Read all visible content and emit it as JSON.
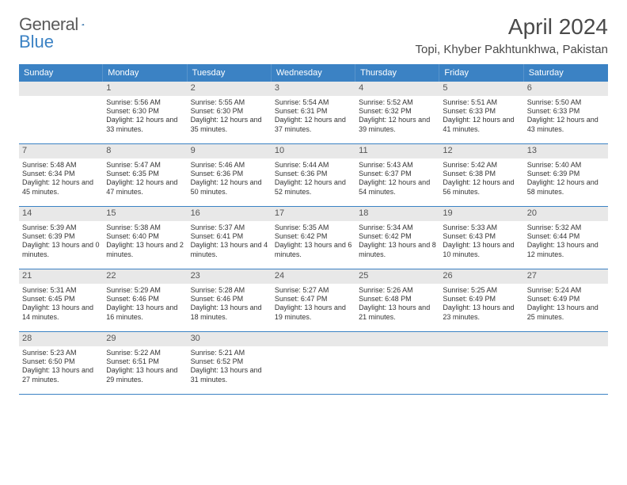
{
  "logo": {
    "text1": "General",
    "text2": "Blue"
  },
  "title": "April 2024",
  "location": "Topi, Khyber Pakhtunkhwa, Pakistan",
  "day_names": [
    "Sunday",
    "Monday",
    "Tuesday",
    "Wednesday",
    "Thursday",
    "Friday",
    "Saturday"
  ],
  "colors": {
    "header_bg": "#3b82c4",
    "header_text": "#ffffff",
    "daynum_bg": "#e8e8e8",
    "text": "#333333",
    "title_color": "#4a4a4a"
  },
  "typography": {
    "title_fontsize": 28,
    "location_fontsize": 15,
    "dayname_fontsize": 11,
    "cell_fontsize": 9
  },
  "weeks": [
    [
      null,
      {
        "n": "1",
        "sr": "5:56 AM",
        "ss": "6:30 PM",
        "dh": "12",
        "dm": "33"
      },
      {
        "n": "2",
        "sr": "5:55 AM",
        "ss": "6:30 PM",
        "dh": "12",
        "dm": "35"
      },
      {
        "n": "3",
        "sr": "5:54 AM",
        "ss": "6:31 PM",
        "dh": "12",
        "dm": "37"
      },
      {
        "n": "4",
        "sr": "5:52 AM",
        "ss": "6:32 PM",
        "dh": "12",
        "dm": "39"
      },
      {
        "n": "5",
        "sr": "5:51 AM",
        "ss": "6:33 PM",
        "dh": "12",
        "dm": "41"
      },
      {
        "n": "6",
        "sr": "5:50 AM",
        "ss": "6:33 PM",
        "dh": "12",
        "dm": "43"
      }
    ],
    [
      {
        "n": "7",
        "sr": "5:48 AM",
        "ss": "6:34 PM",
        "dh": "12",
        "dm": "45"
      },
      {
        "n": "8",
        "sr": "5:47 AM",
        "ss": "6:35 PM",
        "dh": "12",
        "dm": "47"
      },
      {
        "n": "9",
        "sr": "5:46 AM",
        "ss": "6:36 PM",
        "dh": "12",
        "dm": "50"
      },
      {
        "n": "10",
        "sr": "5:44 AM",
        "ss": "6:36 PM",
        "dh": "12",
        "dm": "52"
      },
      {
        "n": "11",
        "sr": "5:43 AM",
        "ss": "6:37 PM",
        "dh": "12",
        "dm": "54"
      },
      {
        "n": "12",
        "sr": "5:42 AM",
        "ss": "6:38 PM",
        "dh": "12",
        "dm": "56"
      },
      {
        "n": "13",
        "sr": "5:40 AM",
        "ss": "6:39 PM",
        "dh": "12",
        "dm": "58"
      }
    ],
    [
      {
        "n": "14",
        "sr": "5:39 AM",
        "ss": "6:39 PM",
        "dh": "13",
        "dm": "0"
      },
      {
        "n": "15",
        "sr": "5:38 AM",
        "ss": "6:40 PM",
        "dh": "13",
        "dm": "2"
      },
      {
        "n": "16",
        "sr": "5:37 AM",
        "ss": "6:41 PM",
        "dh": "13",
        "dm": "4"
      },
      {
        "n": "17",
        "sr": "5:35 AM",
        "ss": "6:42 PM",
        "dh": "13",
        "dm": "6"
      },
      {
        "n": "18",
        "sr": "5:34 AM",
        "ss": "6:42 PM",
        "dh": "13",
        "dm": "8"
      },
      {
        "n": "19",
        "sr": "5:33 AM",
        "ss": "6:43 PM",
        "dh": "13",
        "dm": "10"
      },
      {
        "n": "20",
        "sr": "5:32 AM",
        "ss": "6:44 PM",
        "dh": "13",
        "dm": "12"
      }
    ],
    [
      {
        "n": "21",
        "sr": "5:31 AM",
        "ss": "6:45 PM",
        "dh": "13",
        "dm": "14"
      },
      {
        "n": "22",
        "sr": "5:29 AM",
        "ss": "6:46 PM",
        "dh": "13",
        "dm": "16"
      },
      {
        "n": "23",
        "sr": "5:28 AM",
        "ss": "6:46 PM",
        "dh": "13",
        "dm": "18"
      },
      {
        "n": "24",
        "sr": "5:27 AM",
        "ss": "6:47 PM",
        "dh": "13",
        "dm": "19"
      },
      {
        "n": "25",
        "sr": "5:26 AM",
        "ss": "6:48 PM",
        "dh": "13",
        "dm": "21"
      },
      {
        "n": "26",
        "sr": "5:25 AM",
        "ss": "6:49 PM",
        "dh": "13",
        "dm": "23"
      },
      {
        "n": "27",
        "sr": "5:24 AM",
        "ss": "6:49 PM",
        "dh": "13",
        "dm": "25"
      }
    ],
    [
      {
        "n": "28",
        "sr": "5:23 AM",
        "ss": "6:50 PM",
        "dh": "13",
        "dm": "27"
      },
      {
        "n": "29",
        "sr": "5:22 AM",
        "ss": "6:51 PM",
        "dh": "13",
        "dm": "29"
      },
      {
        "n": "30",
        "sr": "5:21 AM",
        "ss": "6:52 PM",
        "dh": "13",
        "dm": "31"
      },
      null,
      null,
      null,
      null
    ]
  ]
}
